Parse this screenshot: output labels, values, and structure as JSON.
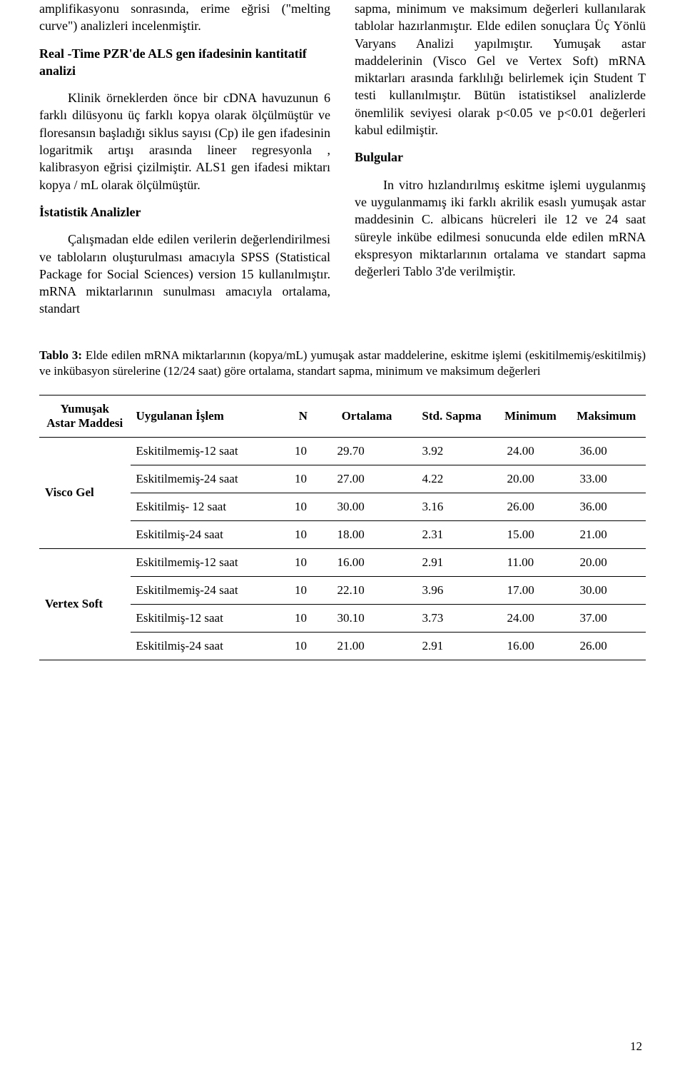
{
  "colors": {
    "text": "#000000",
    "background": "#ffffff",
    "rule": "#000000"
  },
  "typography": {
    "family": "Times New Roman",
    "body_pt": 18,
    "caption_pt": 17,
    "table_pt": 17
  },
  "left_column": {
    "p1": "amplifikasyonu sonrasında, erime eğrisi (\"melting curve\") analizleri incelenmiştir.",
    "sub1": "Real -Time PZR'de ALS gen ifadesinin kantitatif analizi",
    "p2": "Klinik örneklerden önce bir cDNA havuzunun 6 farklı dilüsyonu üç farklı kopya olarak ölçülmüştür ve floresansın başladığı siklus sayısı (Cp) ile gen ifadesinin logaritmik artışı arasında lineer regresyonla , kalibrasyon eğrisi çizilmiştir. ALS1 gen ifadesi miktarı kopya / mL olarak ölçülmüştür.",
    "sub2": "İstatistik Analizler",
    "p3": "Çalışmadan elde edilen verilerin değerlendirilmesi ve tabloların oluşturulması amacıyla SPSS (Statistical Package for Social Sciences) version 15 kullanılmıştır. mRNA miktarlarının sunulması amacıyla ortalama, standart"
  },
  "right_column": {
    "p1": "sapma, minimum ve maksimum değerleri kullanılarak tablolar hazırlanmıştır. Elde edilen sonuçlara Üç Yönlü Varyans Analizi yapılmıştır. Yumuşak astar maddelerinin (Visco Gel ve Vertex Soft) mRNA miktarları arasında farklılığı belirlemek için Student T testi kullanılmıştır. Bütün istatistiksel analizlerde önemlilik seviyesi olarak p<0.05 ve p<0.01 değerleri kabul edilmiştir.",
    "sub1": "Bulgular",
    "p2": "In vitro hızlandırılmış eskitme işlemi uygulanmış ve uygulanmamış iki farklı akrilik esaslı yumuşak astar maddesinin C. albicans hücreleri ile 12 ve 24 saat süreyle inkübe edilmesi sonucunda elde edilen mRNA ekspresyon miktarlarının ortalama ve standart sapma değerleri Tablo 3'de verilmiştir."
  },
  "table_caption": {
    "lead": "Tablo 3:",
    "text": " Elde edilen mRNA miktarlarının (kopya/mL) yumuşak astar maddelerine, eskitme işlemi (eskitilmemiş/eskitilmiş) ve inkübasyon sürelerine (12/24 saat) göre ortalama, standart sapma, minimum ve maksimum değerleri"
  },
  "table": {
    "columns": [
      "Yumuşak Astar Maddesi",
      "Uygulanan İşlem",
      "N",
      "Ortalama",
      "Std. Sapma",
      "Minimum",
      "Maksimum"
    ],
    "col_widths_pct": [
      15,
      25,
      7,
      14,
      14,
      12,
      13
    ],
    "groups": [
      {
        "material": "Visco Gel",
        "rows": [
          [
            "Eskitilmemiş-12 saat",
            "10",
            "29.70",
            "3.92",
            "24.00",
            "36.00"
          ],
          [
            "Eskitilmemiş-24 saat",
            "10",
            "27.00",
            "4.22",
            "20.00",
            "33.00"
          ],
          [
            "Eskitilmiş- 12 saat",
            "10",
            "30.00",
            "3.16",
            "26.00",
            "36.00"
          ],
          [
            "Eskitilmiş-24 saat",
            "10",
            "18.00",
            "2.31",
            "15.00",
            "21.00"
          ]
        ]
      },
      {
        "material": "Vertex Soft",
        "rows": [
          [
            "Eskitilmemiş-12 saat",
            "10",
            "16.00",
            "2.91",
            "11.00",
            "20.00"
          ],
          [
            "Eskitilmemiş-24 saat",
            "10",
            "22.10",
            "3.96",
            "17.00",
            "30.00"
          ],
          [
            "Eskitilmiş-12 saat",
            "10",
            "30.10",
            "3.73",
            "24.00",
            "37.00"
          ],
          [
            "Eskitilmiş-24 saat",
            "10",
            "21.00",
            "2.91",
            "16.00",
            "26.00"
          ]
        ]
      }
    ]
  },
  "page_number": "12"
}
